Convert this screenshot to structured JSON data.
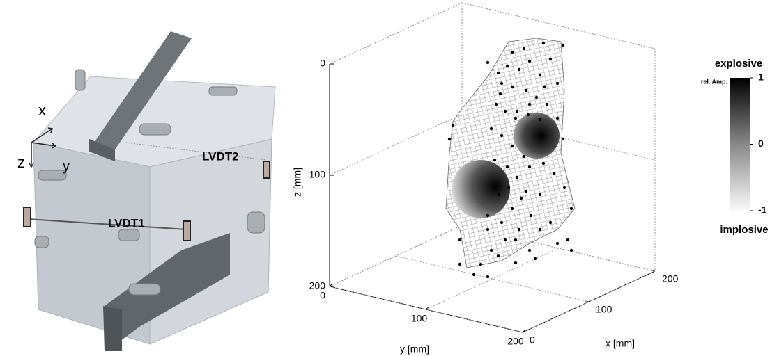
{
  "panel_left": {
    "labels": {
      "x": "x",
      "y": "y",
      "z": "z",
      "lvdt1": "LVDT1",
      "lvdt2": "LVDT2"
    }
  },
  "panel_right": {
    "z_axis": {
      "label": "z [mm]",
      "lim": [
        0,
        200
      ],
      "ticks": [
        0,
        100,
        200
      ]
    },
    "y_axis": {
      "label": "y [mm]",
      "lim": [
        0,
        200
      ],
      "ticks": [
        0,
        100,
        200
      ]
    },
    "x_axis": {
      "label": "x [mm]",
      "lim": [
        0,
        200
      ],
      "ticks": [
        0,
        100,
        200
      ]
    },
    "colorbar": {
      "title_top": "explosive",
      "title_bottom": "implosive",
      "label": "rel. Amp.",
      "lim": [
        -1,
        1
      ],
      "ticks": [
        1,
        0,
        -1
      ]
    }
  }
}
